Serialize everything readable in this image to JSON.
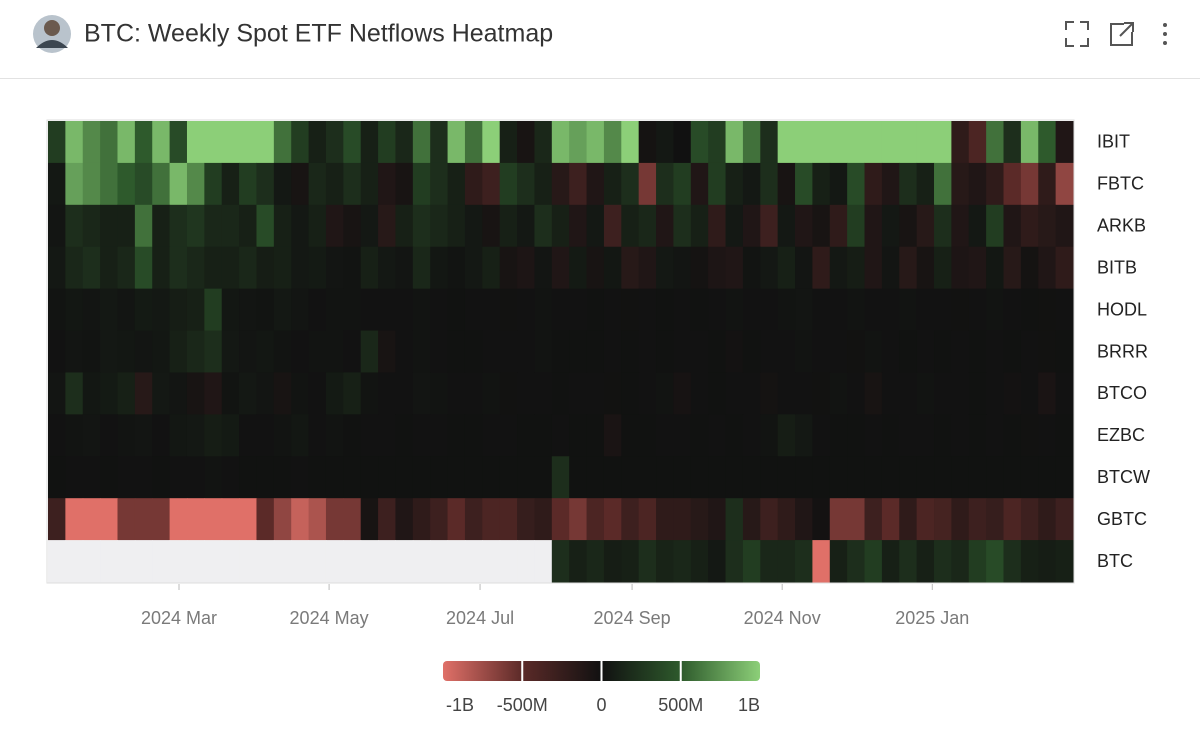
{
  "chart_data": {
    "type": "heatmap",
    "title": "BTC: Weekly Spot ETF Netflows Heatmap",
    "xlim": [
      0,
      59
    ],
    "xticks": [
      {
        "value": 7.54,
        "label": "2024 Mar"
      },
      {
        "value": 16.18,
        "label": "2024 May"
      },
      {
        "value": 24.87,
        "label": "2024 Jul"
      },
      {
        "value": 33.62,
        "label": "2024 Sep"
      },
      {
        "value": 42.26,
        "label": "2024 Nov"
      },
      {
        "value": 50.9,
        "label": "2025 Jan"
      }
    ],
    "clim": [
      -1000,
      1000
    ],
    "cticks": [
      {
        "value": -1000,
        "label": "-1B"
      },
      {
        "value": -500,
        "label": "-500M"
      },
      0,
      {
        "value": 500,
        "label": "500M"
      },
      {
        "value": 1000,
        "label": "1B"
      }
    ],
    "colorscale": [
      "#e07068",
      "#5b2a28",
      "#111111",
      "#2e5a2c",
      "#8ccf78"
    ],
    "missing_color": "#efeff1",
    "series": [
      {
        "name": "IBIT",
        "values": [
          300,
          900,
          700,
          600,
          900,
          500,
          900,
          400,
          1500,
          1800,
          1600,
          1200,
          1000,
          600,
          300,
          100,
          200,
          400,
          100,
          300,
          150,
          600,
          200,
          900,
          600,
          1000,
          100,
          -50,
          150,
          900,
          800,
          900,
          700,
          1000,
          -30,
          50,
          0,
          400,
          300,
          900,
          600,
          200,
          1100,
          1500,
          2000,
          1700,
          1800,
          1200,
          1300,
          1500,
          1600,
          1300,
          -200,
          -400,
          600,
          200,
          900,
          500,
          -100
        ]
      },
      {
        "name": "FBTC",
        "values": [
          50,
          800,
          700,
          600,
          500,
          400,
          600,
          900,
          700,
          300,
          100,
          300,
          200,
          50,
          -50,
          150,
          100,
          200,
          100,
          -100,
          -50,
          300,
          200,
          100,
          -200,
          -300,
          300,
          200,
          100,
          -150,
          -300,
          -100,
          100,
          200,
          -600,
          200,
          300,
          -100,
          300,
          100,
          50,
          200,
          -50,
          400,
          100,
          50,
          400,
          -200,
          -100,
          200,
          100,
          600,
          -150,
          -100,
          -200,
          -500,
          -600,
          -200,
          -700
        ]
      },
      {
        "name": "ARKB",
        "values": [
          30,
          200,
          150,
          100,
          100,
          600,
          100,
          200,
          250,
          150,
          150,
          100,
          400,
          100,
          50,
          100,
          -100,
          -50,
          50,
          -150,
          100,
          200,
          150,
          100,
          50,
          -50,
          100,
          50,
          200,
          100,
          -100,
          50,
          -300,
          100,
          150,
          -100,
          200,
          100,
          -200,
          50,
          -100,
          -300,
          50,
          -100,
          -50,
          -200,
          300,
          -100,
          50,
          -50,
          -150,
          200,
          -100,
          50,
          300,
          -100,
          -200,
          -150,
          -100
        ]
      },
      {
        "name": "BITB",
        "values": [
          50,
          150,
          200,
          100,
          150,
          400,
          100,
          200,
          150,
          100,
          100,
          150,
          80,
          100,
          50,
          60,
          30,
          20,
          100,
          50,
          30,
          150,
          40,
          20,
          50,
          100,
          -50,
          -80,
          30,
          -100,
          60,
          -50,
          40,
          -150,
          -100,
          50,
          30,
          -30,
          -80,
          -100,
          20,
          50,
          100,
          30,
          -200,
          50,
          80,
          -100,
          30,
          -150,
          -50,
          100,
          -80,
          -100,
          40,
          -150,
          -30,
          -100,
          -200
        ]
      },
      {
        "name": "HODL",
        "values": [
          20,
          40,
          30,
          50,
          30,
          60,
          50,
          80,
          100,
          300,
          40,
          30,
          20,
          50,
          30,
          10,
          20,
          20,
          10,
          10,
          10,
          20,
          10,
          5,
          10,
          10,
          -10,
          10,
          20,
          10,
          10,
          5,
          10,
          -10,
          10,
          5,
          10,
          5,
          10,
          20,
          10,
          10,
          20,
          30,
          10,
          10,
          20,
          10,
          10,
          20,
          10,
          10,
          -10,
          10,
          20,
          10,
          5,
          -10,
          10
        ]
      },
      {
        "name": "BRRR",
        "values": [
          10,
          30,
          20,
          50,
          40,
          30,
          40,
          100,
          150,
          200,
          50,
          30,
          40,
          20,
          10,
          20,
          20,
          10,
          150,
          -50,
          10,
          20,
          10,
          5,
          5,
          10,
          10,
          10,
          20,
          5,
          5,
          5,
          10,
          5,
          10,
          5,
          10,
          10,
          5,
          -20,
          5,
          10,
          10,
          20,
          10,
          10,
          -10,
          20,
          10,
          5,
          10,
          5,
          10,
          5,
          10,
          5,
          10,
          -10,
          5
        ]
      },
      {
        "name": "BTCO",
        "values": [
          30,
          200,
          40,
          60,
          100,
          -150,
          50,
          30,
          -50,
          -100,
          20,
          50,
          30,
          -50,
          20,
          10,
          60,
          100,
          20,
          10,
          10,
          30,
          20,
          10,
          10,
          20,
          -10,
          10,
          10,
          5,
          10,
          10,
          -10,
          5,
          10,
          20,
          -40,
          10,
          5,
          10,
          10,
          -30,
          10,
          10,
          -10,
          20,
          10,
          -50,
          10,
          10,
          20,
          10,
          10,
          5,
          10,
          -20,
          10,
          -60,
          10
        ]
      },
      {
        "name": "EZBC",
        "values": [
          10,
          20,
          30,
          10,
          20,
          30,
          10,
          40,
          50,
          80,
          60,
          10,
          10,
          20,
          40,
          10,
          20,
          5,
          10,
          10,
          5,
          10,
          10,
          5,
          5,
          10,
          10,
          5,
          5,
          10,
          5,
          5,
          -60,
          5,
          5,
          10,
          10,
          5,
          10,
          5,
          10,
          20,
          80,
          50,
          10,
          5,
          5,
          10,
          5,
          10,
          10,
          5,
          10,
          5,
          10,
          5,
          -10,
          10,
          5
        ]
      },
      {
        "name": "BTCW",
        "values": [
          5,
          10,
          10,
          5,
          10,
          10,
          5,
          10,
          10,
          20,
          10,
          5,
          5,
          5,
          10,
          5,
          5,
          5,
          5,
          5,
          5,
          5,
          5,
          5,
          5,
          5,
          5,
          5,
          5,
          200,
          5,
          5,
          5,
          5,
          5,
          5,
          5,
          5,
          5,
          5,
          5,
          5,
          5,
          5,
          5,
          5,
          5,
          5,
          5,
          5,
          5,
          5,
          5,
          5,
          5,
          5,
          5,
          5,
          5
        ]
      },
      {
        "name": "GBTC",
        "values": [
          -300,
          -1000,
          -1000,
          -1000,
          -600,
          -600,
          -600,
          -1100,
          -1100,
          -1100,
          -1100,
          -1100,
          -500,
          -700,
          -900,
          -800,
          -600,
          -600,
          -50,
          -300,
          -100,
          -200,
          -300,
          -500,
          -300,
          -400,
          -400,
          -250,
          -200,
          -500,
          -600,
          -400,
          -500,
          -300,
          -400,
          -200,
          -200,
          -150,
          -100,
          200,
          -150,
          -300,
          -200,
          -100,
          -20,
          -600,
          -600,
          -300,
          -500,
          -200,
          -400,
          -350,
          -200,
          -300,
          -250,
          -400,
          -300,
          -200,
          -300
        ]
      },
      {
        "name": "BTC",
        "values": [
          null,
          null,
          null,
          null,
          null,
          null,
          null,
          null,
          null,
          null,
          null,
          null,
          null,
          null,
          null,
          null,
          null,
          null,
          null,
          null,
          null,
          null,
          null,
          null,
          null,
          null,
          null,
          null,
          null,
          200,
          100,
          150,
          80,
          100,
          200,
          120,
          150,
          100,
          50,
          200,
          300,
          150,
          150,
          200,
          -1000,
          100,
          200,
          300,
          100,
          200,
          100,
          200,
          150,
          300,
          400,
          200,
          100,
          80,
          100
        ]
      }
    ]
  }
}
